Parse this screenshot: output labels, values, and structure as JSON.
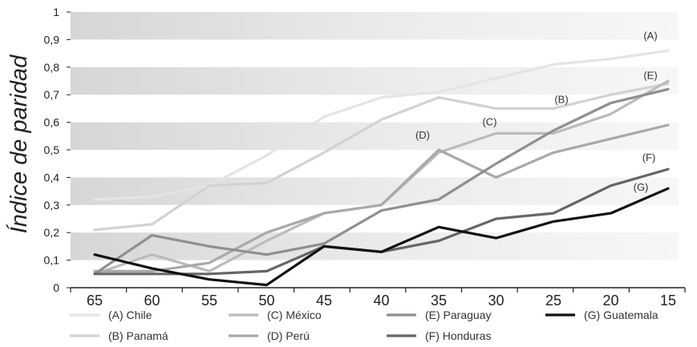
{
  "chart_data": {
    "type": "line",
    "ylabel": "Índice de paridad",
    "xlabel": "",
    "ylim": [
      0,
      1
    ],
    "grid": "alternating horizontal bands",
    "legend_position": "bottom",
    "x": [
      65,
      60,
      55,
      50,
      45,
      40,
      35,
      30,
      25,
      20,
      15
    ],
    "x_tick_labels": [
      "65",
      "60",
      "55",
      "50",
      "45",
      "40",
      "35",
      "30",
      "25",
      "20",
      "15"
    ],
    "y_ticks": [
      0,
      0.1,
      0.2,
      0.3,
      0.4,
      0.5,
      0.6,
      0.7,
      0.8,
      0.9,
      1
    ],
    "y_tick_labels": [
      "0",
      "0,1",
      "0,2",
      "0,3",
      "0,4",
      "0,5",
      "0,6",
      "0,7",
      "0,8",
      "0,9",
      "1"
    ],
    "series": [
      {
        "name": "(A) Chile",
        "tag": "(A)",
        "color": "#e4e4e4",
        "values": [
          0.32,
          0.33,
          0.37,
          0.48,
          0.62,
          0.69,
          0.71,
          0.76,
          0.81,
          0.83,
          0.86
        ]
      },
      {
        "name": "(B) Panamá",
        "tag": "(B)",
        "color": "#d2d2d2",
        "values": [
          0.21,
          0.23,
          0.37,
          0.38,
          0.49,
          0.61,
          0.69,
          0.65,
          0.65,
          0.7,
          0.74
        ]
      },
      {
        "name": "(C) México",
        "tag": "(C)",
        "color": "#bbbbbb",
        "values": [
          0.05,
          0.12,
          0.06,
          0.17,
          0.27,
          0.3,
          0.49,
          0.56,
          0.56,
          0.63,
          0.75
        ]
      },
      {
        "name": "(D) Perú",
        "tag": "(D)",
        "color": "#a9a9a9",
        "values": [
          0.06,
          0.06,
          0.09,
          0.2,
          0.27,
          0.3,
          0.5,
          0.4,
          0.49,
          0.54,
          0.59
        ]
      },
      {
        "name": "(E) Paraguay",
        "tag": "(E)",
        "color": "#8f8f8f",
        "values": [
          0.05,
          0.19,
          0.15,
          0.12,
          0.16,
          0.28,
          0.32,
          0.45,
          0.57,
          0.67,
          0.72
        ]
      },
      {
        "name": "(F) Honduras",
        "tag": "(F)",
        "color": "#666666",
        "values": [
          0.05,
          0.05,
          0.05,
          0.06,
          0.15,
          0.13,
          0.17,
          0.25,
          0.27,
          0.37,
          0.43
        ]
      },
      {
        "name": "(G) Guatemala",
        "tag": "(G)",
        "color": "#111111",
        "values": [
          0.12,
          0.07,
          0.03,
          0.01,
          0.15,
          0.13,
          0.22,
          0.18,
          0.24,
          0.27,
          0.36
        ]
      }
    ]
  }
}
